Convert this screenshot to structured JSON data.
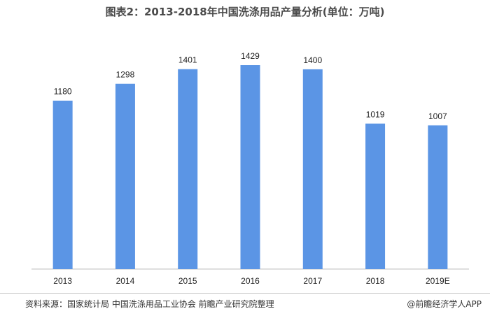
{
  "title": "图表2：2013-2018年中国洗涤用品产量分析(单位：万吨)",
  "source": "资料来源：国家统计局 中国洗涤用品工业协会 前瞻产业研究院整理",
  "brand": "@前瞻经济学人APP",
  "colors": {
    "bar": "#5b95e5",
    "axis": "#bfbfbf"
  },
  "chart_data": {
    "type": "bar",
    "title": "图表2：2013-2018年中国洗涤用品产量分析(单位：万吨)",
    "categories": [
      "2013",
      "2014",
      "2015",
      "2016",
      "2017",
      "2018",
      "2019E"
    ],
    "values": [
      1180,
      1298,
      1401,
      1429,
      1400,
      1019,
      1007
    ],
    "data_labels": [
      "1180",
      "1298",
      "1401",
      "1429",
      "1400",
      "1019",
      "1007"
    ],
    "xlabel": "",
    "ylabel": "",
    "ylim": [
      0,
      1650
    ],
    "grid": false,
    "legend": "none"
  }
}
